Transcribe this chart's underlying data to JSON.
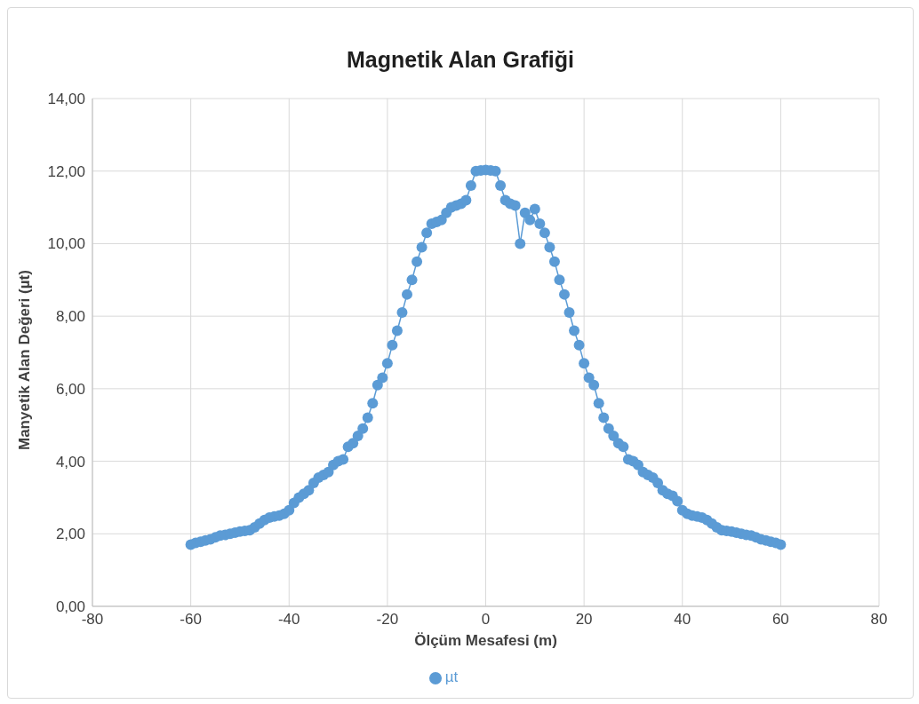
{
  "chart_data": {
    "type": "line",
    "title": "Magnetik Alan Grafiği",
    "xlabel": "Ölçüm Mesafesi (m)",
    "ylabel": "Manyetik Alan Değeri (µt)",
    "x": [
      -60,
      -59,
      -58,
      -57,
      -56,
      -55,
      -54,
      -53,
      -52,
      -51,
      -50,
      -49,
      -48,
      -47,
      -46,
      -45,
      -44,
      -43,
      -42,
      -41,
      -40,
      -39,
      -38,
      -37,
      -36,
      -35,
      -34,
      -33,
      -32,
      -31,
      -30,
      -29,
      -28,
      -27,
      -26,
      -25,
      -24,
      -23,
      -22,
      -21,
      -20,
      -19,
      -18,
      -17,
      -16,
      -15,
      -14,
      -13,
      -12,
      -11,
      -10,
      -9,
      -8,
      -7,
      -6,
      -5,
      -4,
      -3,
      -2,
      -1,
      0,
      1,
      2,
      3,
      4,
      5,
      6,
      7,
      8,
      9,
      10,
      11,
      12,
      13,
      14,
      15,
      16,
      17,
      18,
      19,
      20,
      21,
      22,
      23,
      24,
      25,
      26,
      27,
      28,
      29,
      30,
      31,
      32,
      33,
      34,
      35,
      36,
      37,
      38,
      39,
      40,
      41,
      42,
      43,
      44,
      45,
      46,
      47,
      48,
      49,
      50,
      51,
      52,
      53,
      54,
      55,
      56,
      57,
      58,
      59,
      60
    ],
    "series": [
      {
        "name": "µt",
        "color": "#5b9bd5",
        "values": [
          1.7,
          1.75,
          1.78,
          1.82,
          1.85,
          1.9,
          1.95,
          1.97,
          2.0,
          2.03,
          2.06,
          2.08,
          2.1,
          2.18,
          2.28,
          2.38,
          2.45,
          2.48,
          2.5,
          2.55,
          2.65,
          2.85,
          3.0,
          3.1,
          3.2,
          3.4,
          3.55,
          3.62,
          3.7,
          3.9,
          4.0,
          4.05,
          4.4,
          4.5,
          4.7,
          4.9,
          5.2,
          5.6,
          6.1,
          6.3,
          6.7,
          7.2,
          7.6,
          8.1,
          8.6,
          9.0,
          9.5,
          9.9,
          10.3,
          10.55,
          10.6,
          10.65,
          10.85,
          11.0,
          11.05,
          11.1,
          11.2,
          11.6,
          12.0,
          12.02,
          12.03,
          12.02,
          12.0,
          11.6,
          11.2,
          11.1,
          11.05,
          10.0,
          10.85,
          10.65,
          10.95,
          10.55,
          10.3,
          9.9,
          9.5,
          9.0,
          8.6,
          8.1,
          7.6,
          7.2,
          6.7,
          6.3,
          6.1,
          5.6,
          5.2,
          4.9,
          4.7,
          4.5,
          4.4,
          4.05,
          4.0,
          3.9,
          3.7,
          3.62,
          3.55,
          3.4,
          3.2,
          3.1,
          3.05,
          2.9,
          2.65,
          2.55,
          2.5,
          2.48,
          2.45,
          2.38,
          2.28,
          2.18,
          2.1,
          2.08,
          2.06,
          2.03,
          2.0,
          1.97,
          1.95,
          1.9,
          1.85,
          1.82,
          1.78,
          1.75,
          1.7
        ]
      }
    ],
    "xlim": [
      -80,
      80
    ],
    "xticks": [
      -80,
      -60,
      -40,
      -20,
      0,
      20,
      40,
      60,
      80
    ],
    "ylim": [
      0,
      14
    ],
    "yticks": [
      {
        "value": 0,
        "label": "0,00"
      },
      {
        "value": 2,
        "label": "2,00"
      },
      {
        "value": 4,
        "label": "4,00"
      },
      {
        "value": 6,
        "label": "6,00"
      },
      {
        "value": 8,
        "label": "8,00"
      },
      {
        "value": 10,
        "label": "10,00"
      },
      {
        "value": 12,
        "label": "12,00"
      },
      {
        "value": 14,
        "label": "14,00"
      }
    ],
    "grid": true,
    "legend": "bottom",
    "marker": "circle",
    "line_style": "solid"
  }
}
